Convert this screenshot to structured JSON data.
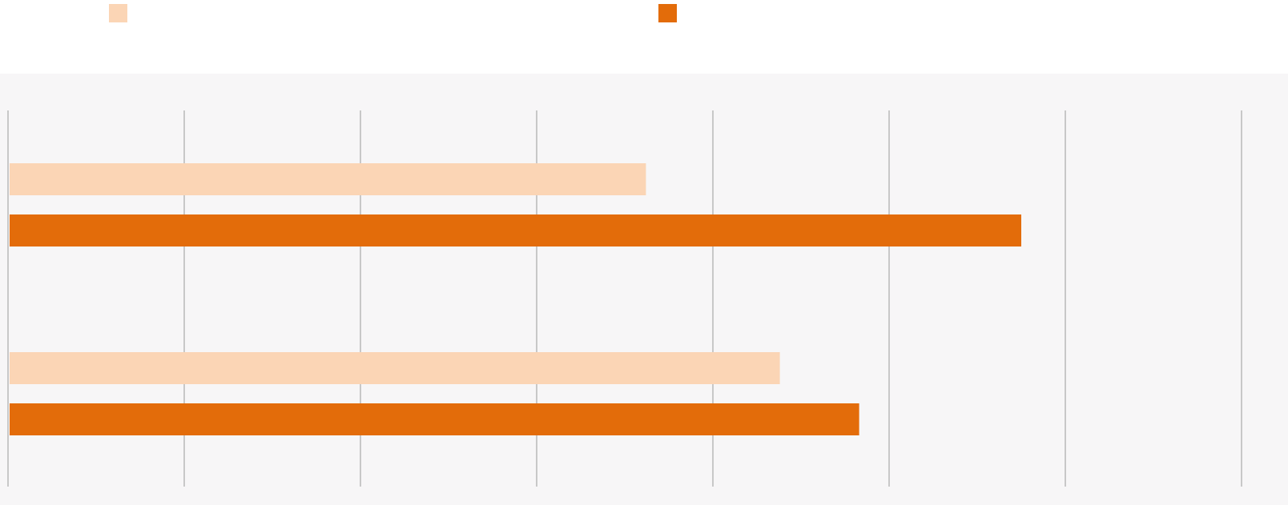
{
  "chart_data": {
    "type": "hbar",
    "categories": [
      null,
      null
    ],
    "series": [
      {
        "color": "#fbd5b5",
        "values": [
          3.62,
          4.38
        ]
      },
      {
        "color": "#e36c0a",
        "values": [
          5.75,
          4.83
        ]
      }
    ],
    "xlim": [
      0,
      7.1
    ],
    "xticks": [
      0,
      1,
      2,
      3,
      4,
      5,
      6,
      7
    ],
    "grid": true
  }
}
